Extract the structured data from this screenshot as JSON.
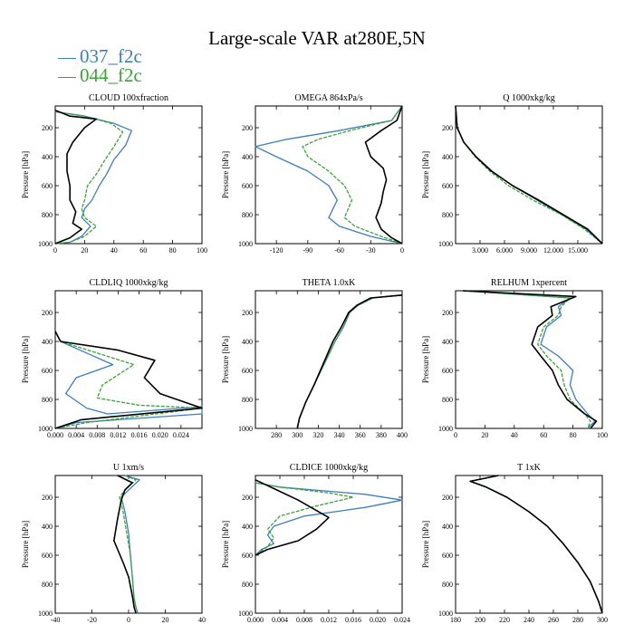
{
  "title": "Large-scale VAR at280E,5N",
  "legend": [
    {
      "name": "037_f2c",
      "color": "#3a7fbf"
    },
    {
      "name": "044_f2c",
      "color": "#3aa535"
    }
  ],
  "colors": {
    "series_a": "#3a7fbf",
    "series_b": "#3aa535",
    "series_c": "#000000"
  },
  "chart_data": [
    {
      "type": "line",
      "title": "CLOUD  100xfraction",
      "ylabel": "Pressure [hPa]",
      "xlim": [
        0,
        100
      ],
      "ylim": [
        1000,
        50
      ],
      "y_reversed": true,
      "xticks": [
        0,
        20,
        40,
        60,
        80,
        100
      ],
      "xtick_labels": [
        "0",
        "20",
        "40",
        "60",
        "80",
        "100"
      ],
      "yticks": [
        200,
        400,
        600,
        800,
        1000
      ],
      "ytick_labels": [
        "200",
        "400",
        "600",
        "800",
        "1000"
      ],
      "series": [
        {
          "name": "037_f2c",
          "x": [
            0,
            20,
            40,
            52,
            48,
            40,
            35,
            30,
            25,
            20,
            18,
            24,
            18,
            10,
            0
          ],
          "y": [
            90,
            120,
            170,
            220,
            320,
            420,
            520,
            600,
            700,
            760,
            820,
            880,
            950,
            990,
            1000
          ]
        },
        {
          "name": "044_f2c",
          "x": [
            0,
            20,
            38,
            46,
            40,
            34,
            28,
            22,
            20,
            18,
            20,
            28,
            20,
            10,
            0
          ],
          "y": [
            90,
            120,
            170,
            230,
            330,
            420,
            520,
            600,
            700,
            760,
            820,
            880,
            950,
            990,
            1000
          ]
        },
        {
          "name": "",
          "x": [
            0,
            10,
            28,
            20,
            12,
            8,
            8,
            10,
            10,
            14,
            12,
            18,
            10,
            0
          ],
          "y": [
            80,
            120,
            140,
            200,
            300,
            380,
            500,
            600,
            700,
            780,
            860,
            900,
            960,
            1000
          ]
        }
      ]
    },
    {
      "type": "line",
      "title": "OMEGA  864xPa/s",
      "ylabel": "Pressure [hPa]",
      "xlim": [
        -140,
        0
      ],
      "ylim": [
        1000,
        50
      ],
      "y_reversed": true,
      "xticks": [
        -120,
        -90,
        -60,
        -30,
        0
      ],
      "xtick_labels": [
        "-120",
        "-90",
        "-60",
        "-30",
        "0"
      ],
      "yticks": [
        200,
        400,
        600,
        800,
        1000
      ],
      "ytick_labels": [
        "200",
        "400",
        "600",
        "800",
        "1000"
      ],
      "series": [
        {
          "name": "037_f2c",
          "x": [
            0,
            -10,
            -60,
            -110,
            -140,
            -120,
            -90,
            -70,
            -62,
            -70,
            -60,
            -30,
            0
          ],
          "y": [
            50,
            150,
            220,
            280,
            330,
            400,
            500,
            600,
            700,
            820,
            880,
            950,
            1000
          ]
        },
        {
          "name": "044_f2c",
          "x": [
            0,
            -10,
            -50,
            -80,
            -95,
            -90,
            -70,
            -55,
            -48,
            -55,
            -45,
            -20,
            0
          ],
          "y": [
            50,
            150,
            220,
            280,
            330,
            400,
            500,
            600,
            700,
            820,
            880,
            950,
            1000
          ]
        },
        {
          "name": "",
          "x": [
            0,
            -5,
            -20,
            -35,
            -30,
            -18,
            -15,
            -18,
            -20,
            -25,
            -20,
            -10,
            0
          ],
          "y": [
            50,
            150,
            220,
            300,
            400,
            480,
            560,
            640,
            720,
            820,
            900,
            960,
            1000
          ]
        }
      ]
    },
    {
      "type": "line",
      "title": "Q  1000xkg/kg",
      "ylabel": "Pressure [hPa]",
      "xlim": [
        0,
        18
      ],
      "ylim": [
        1000,
        50
      ],
      "y_reversed": true,
      "xticks": [
        3,
        6,
        9,
        12,
        15
      ],
      "xtick_labels": [
        "3.000",
        "6.000",
        "9.000",
        "12.000",
        "15.000"
      ],
      "yticks": [
        200,
        400,
        600,
        800,
        1000
      ],
      "ytick_labels": [
        "200",
        "400",
        "600",
        "800",
        "1000"
      ],
      "series": [
        {
          "name": "037_f2c",
          "x": [
            0,
            0.2,
            1,
            2.5,
            4.5,
            7,
            10,
            13,
            16,
            18
          ],
          "y": [
            50,
            200,
            300,
            400,
            500,
            600,
            700,
            800,
            900,
            1000
          ]
        },
        {
          "name": "044_f2c",
          "x": [
            0,
            0.2,
            1,
            2.4,
            4.2,
            6.5,
            9.5,
            13,
            15.8,
            18
          ],
          "y": [
            50,
            200,
            300,
            400,
            500,
            600,
            700,
            800,
            900,
            1000
          ]
        },
        {
          "name": "",
          "x": [
            0,
            0.2,
            1,
            2.5,
            4.4,
            7,
            10.2,
            13.2,
            16.2,
            18
          ],
          "y": [
            50,
            200,
            300,
            400,
            500,
            600,
            700,
            800,
            900,
            1000
          ]
        }
      ]
    },
    {
      "type": "line",
      "title": "CLDLIQ  1000xkg/kg",
      "ylabel": "Pressure [hPa]",
      "xlim": [
        0,
        0.028
      ],
      "ylim": [
        1000,
        50
      ],
      "y_reversed": true,
      "xticks": [
        0,
        0.004,
        0.008,
        0.012,
        0.016,
        0.02,
        0.024
      ],
      "xtick_labels": [
        "0.000",
        "0.004",
        "0.008",
        "0.012",
        "0.016",
        "0.020",
        "0.024"
      ],
      "yticks": [
        200,
        400,
        600,
        800,
        1000
      ],
      "ytick_labels": [
        "200",
        "400",
        "600",
        "800",
        "1000"
      ],
      "series": [
        {
          "name": "037_f2c",
          "x": [
            0,
            0.001,
            0.006,
            0.011,
            0.004,
            0.002,
            0.006,
            0.01,
            0.028,
            0.028,
            0.004,
            0
          ],
          "y": [
            330,
            400,
            480,
            560,
            650,
            760,
            860,
            900,
            850,
            900,
            960,
            1000
          ]
        },
        {
          "name": "044_f2c",
          "x": [
            0,
            0.001,
            0.008,
            0.015,
            0.009,
            0.008,
            0.016,
            0.028,
            0.006,
            0
          ],
          "y": [
            330,
            400,
            480,
            560,
            700,
            790,
            840,
            860,
            960,
            1000
          ]
        },
        {
          "name": "",
          "x": [
            0,
            0.001,
            0.012,
            0.019,
            0.017,
            0.02,
            0.028,
            0.005,
            0
          ],
          "y": [
            330,
            400,
            460,
            530,
            650,
            760,
            860,
            940,
            1000
          ]
        }
      ]
    },
    {
      "type": "line",
      "title": "THETA  1.0xK",
      "ylabel": "Pressure [hPa]",
      "xlim": [
        260,
        400
      ],
      "ylim": [
        1000,
        50
      ],
      "y_reversed": true,
      "xticks": [
        280,
        300,
        320,
        340,
        360,
        380,
        400
      ],
      "xtick_labels": [
        "280",
        "300",
        "320",
        "340",
        "360",
        "380",
        "400"
      ],
      "yticks": [
        200,
        400,
        600,
        800,
        1000
      ],
      "ytick_labels": [
        "200",
        "400",
        "600",
        "800",
        "1000"
      ],
      "series": [
        {
          "name": "037_f2c",
          "x": [
            400,
            372,
            358,
            350,
            344,
            336,
            326,
            316,
            308,
            302,
            300
          ],
          "y": [
            80,
            100,
            150,
            200,
            300,
            400,
            550,
            700,
            820,
            930,
            1000
          ]
        },
        {
          "name": "044_f2c",
          "x": [
            400,
            372,
            358,
            350,
            344,
            336,
            326,
            316,
            308,
            302,
            300
          ],
          "y": [
            80,
            100,
            150,
            200,
            300,
            400,
            550,
            700,
            820,
            930,
            1000
          ]
        },
        {
          "name": "",
          "x": [
            400,
            370,
            357,
            349,
            342,
            334,
            325,
            316,
            308,
            302,
            300
          ],
          "y": [
            80,
            100,
            150,
            200,
            300,
            400,
            550,
            700,
            820,
            930,
            1000
          ]
        }
      ]
    },
    {
      "type": "line",
      "title": "RELHUM  1xpercent",
      "ylabel": "Pressure [hPa]",
      "xlim": [
        0,
        100
      ],
      "ylim": [
        1000,
        50
      ],
      "y_reversed": true,
      "xticks": [
        0,
        20,
        40,
        60,
        80,
        100
      ],
      "xtick_labels": [
        "0",
        "20",
        "40",
        "60",
        "80",
        "100"
      ],
      "yticks": [
        200,
        400,
        600,
        800,
        1000
      ],
      "ytick_labels": [
        "200",
        "400",
        "600",
        "800",
        "1000"
      ],
      "series": [
        {
          "name": "037_f2c",
          "x": [
            5,
            78,
            70,
            72,
            62,
            58,
            70,
            80,
            78,
            82,
            90,
            95,
            90
          ],
          "y": [
            50,
            100,
            160,
            220,
            300,
            420,
            500,
            600,
            700,
            800,
            900,
            950,
            1000
          ]
        },
        {
          "name": "044_f2c",
          "x": [
            5,
            78,
            72,
            70,
            60,
            56,
            62,
            72,
            74,
            78,
            88,
            92,
            90
          ],
          "y": [
            50,
            100,
            160,
            220,
            300,
            420,
            500,
            600,
            700,
            800,
            900,
            950,
            1000
          ]
        },
        {
          "name": "",
          "x": [
            5,
            82,
            65,
            66,
            56,
            52,
            58,
            66,
            70,
            76,
            88,
            96,
            92
          ],
          "y": [
            50,
            90,
            160,
            220,
            300,
            420,
            500,
            600,
            700,
            800,
            900,
            950,
            1000
          ]
        }
      ]
    },
    {
      "type": "line",
      "title": "U  1xm/s",
      "ylabel": "Pressure [hPa]",
      "xlim": [
        -40,
        40
      ],
      "ylim": [
        1000,
        50
      ],
      "y_reversed": true,
      "xticks": [
        -40,
        -20,
        0,
        20,
        40
      ],
      "xtick_labels": [
        "-40",
        "-20",
        "0",
        "20",
        "40"
      ],
      "yticks": [
        200,
        400,
        600,
        800,
        1000
      ],
      "ytick_labels": [
        "200",
        "400",
        "600",
        "800",
        "1000"
      ],
      "series": [
        {
          "name": "037_f2c",
          "x": [
            -2,
            6,
            0,
            -4,
            -2,
            0,
            1,
            2,
            3,
            4,
            5
          ],
          "y": [
            50,
            80,
            150,
            200,
            300,
            450,
            600,
            750,
            900,
            960,
            1000
          ]
        },
        {
          "name": "044_f2c",
          "x": [
            -2,
            4,
            -2,
            -5,
            -3,
            -1,
            1,
            2,
            3,
            4,
            5
          ],
          "y": [
            50,
            80,
            150,
            200,
            300,
            450,
            600,
            750,
            900,
            960,
            1000
          ]
        },
        {
          "name": "",
          "x": [
            -6,
            2,
            -2,
            -4,
            -6,
            -8,
            -3,
            0,
            2,
            3,
            4
          ],
          "y": [
            50,
            100,
            150,
            220,
            350,
            500,
            650,
            750,
            880,
            960,
            1000
          ]
        }
      ]
    },
    {
      "type": "line",
      "title": "CLDICE  1000xkg/kg",
      "ylabel": "Pressure [hPa]",
      "xlim": [
        0,
        0.024
      ],
      "ylim": [
        1000,
        50
      ],
      "y_reversed": true,
      "xticks": [
        0,
        0.004,
        0.008,
        0.012,
        0.016,
        0.02,
        0.024
      ],
      "xtick_labels": [
        "0.000",
        "0.004",
        "0.008",
        "0.012",
        "0.016",
        "0.020",
        "0.024"
      ],
      "yticks": [
        200,
        400,
        600,
        800,
        1000
      ],
      "ytick_labels": [
        "200",
        "400",
        "600",
        "800",
        "1000"
      ],
      "series": [
        {
          "name": "037_f2c",
          "x": [
            0,
            0.004,
            0.018,
            0.024,
            0.018,
            0.008,
            0.003,
            0.002,
            0.003,
            0.001,
            0
          ],
          "y": [
            100,
            130,
            180,
            220,
            270,
            330,
            400,
            460,
            520,
            560,
            600
          ]
        },
        {
          "name": "044_f2c",
          "x": [
            0,
            0.004,
            0.012,
            0.016,
            0.01,
            0.004,
            0.002,
            0.003,
            0.002,
            0
          ],
          "y": [
            100,
            130,
            170,
            200,
            260,
            330,
            420,
            480,
            540,
            600
          ]
        },
        {
          "name": "",
          "x": [
            0,
            0.003,
            0.007,
            0.012,
            0.01,
            0.007,
            0.002,
            0
          ],
          "y": [
            80,
            140,
            220,
            340,
            420,
            500,
            560,
            600
          ]
        }
      ]
    },
    {
      "type": "line",
      "title": "T  1xK",
      "ylabel": "Pressure [hPa]",
      "xlim": [
        180,
        300
      ],
      "ylim": [
        1000,
        50
      ],
      "y_reversed": true,
      "xticks": [
        180,
        200,
        220,
        240,
        260,
        280,
        300
      ],
      "xtick_labels": [
        "180",
        "200",
        "220",
        "240",
        "260",
        "280",
        "300"
      ],
      "yticks": [
        200,
        400,
        600,
        800,
        1000
      ],
      "ytick_labels": [
        "200",
        "400",
        "600",
        "800",
        "1000"
      ],
      "series": [
        {
          "name": "037_f2c",
          "x": [
            215,
            192,
            205,
            222,
            240,
            255,
            268,
            280,
            290,
            297,
            300
          ],
          "y": [
            50,
            90,
            130,
            200,
            300,
            400,
            520,
            650,
            780,
            920,
            1000
          ]
        },
        {
          "name": "044_f2c",
          "x": [
            215,
            192,
            205,
            222,
            240,
            255,
            268,
            280,
            290,
            297,
            300
          ],
          "y": [
            50,
            90,
            130,
            200,
            300,
            400,
            520,
            650,
            780,
            920,
            1000
          ]
        },
        {
          "name": "",
          "x": [
            215,
            192,
            205,
            222,
            240,
            255,
            268,
            280,
            290,
            297,
            300
          ],
          "y": [
            50,
            90,
            130,
            200,
            300,
            400,
            520,
            650,
            780,
            920,
            1000
          ]
        }
      ]
    }
  ]
}
